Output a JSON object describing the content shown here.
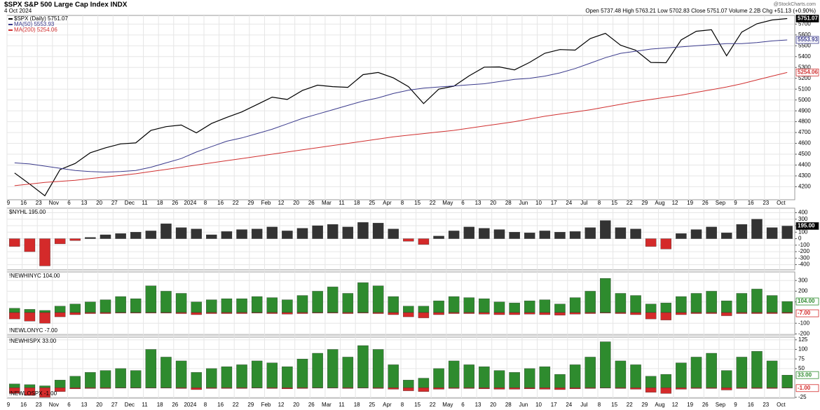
{
  "header": {
    "title": "$SPX S&P 500 Large Cap Index INDX",
    "date": "4 Oct 2024",
    "quote": "Open 5737.48 High 5763.21 Low 5702.83 Close 5751.07 Volume 2.2B Chg +51.13 (+0.90%)",
    "brand": "@StockCharts.com"
  },
  "chart_data": [
    {
      "type": "line",
      "grid": true,
      "categories": [
        "9",
        "16",
        "23",
        "Nov",
        "6",
        "13",
        "20",
        "27",
        "Dec",
        "11",
        "18",
        "26",
        "2024",
        "8",
        "16",
        "22",
        "29",
        "Feb",
        "12",
        "20",
        "26",
        "Mar",
        "11",
        "18",
        "25",
        "Apr",
        "8",
        "15",
        "22",
        "May",
        "6",
        "13",
        "20",
        "28",
        "Jun",
        "10",
        "17",
        "24",
        "Jul",
        "8",
        "15",
        "22",
        "29",
        "Aug",
        "12",
        "19",
        "26",
        "Sep",
        "9",
        "16",
        "23",
        "Oct"
      ],
      "ylim": [
        4080,
        5780
      ],
      "yticks": [
        4200,
        4300,
        4400,
        4500,
        4600,
        4700,
        4800,
        4900,
        5000,
        5100,
        5200,
        5300,
        5400,
        5500,
        5600,
        5700
      ],
      "series": [
        {
          "name": "$SPX (Daily) 5751.07",
          "color": "#000000",
          "last_label": "5751.07",
          "values": [
            4327,
            4224,
            4117,
            4358,
            4415,
            4514,
            4559,
            4595,
            4604,
            4719,
            4754,
            4769,
            4697,
            4783,
            4839,
            4890,
            4958,
            5026,
            5005,
            5088,
            5137,
            5123,
            5117,
            5234,
            5254,
            5204,
            5123,
            4967,
            5100,
            5128,
            5223,
            5303,
            5305,
            5278,
            5347,
            5431,
            5465,
            5460,
            5567,
            5615,
            5505,
            5459,
            5346,
            5344,
            5554,
            5634,
            5648,
            5408,
            5626,
            5703,
            5738,
            5751
          ]
        },
        {
          "name": "MA(50) 5553.93",
          "color": "#3a3a8c",
          "last_label": "5553.93",
          "values": [
            4420,
            4410,
            4390,
            4370,
            4350,
            4340,
            4335,
            4340,
            4350,
            4380,
            4420,
            4460,
            4520,
            4570,
            4620,
            4650,
            4690,
            4730,
            4780,
            4830,
            4870,
            4910,
            4950,
            4990,
            5020,
            5060,
            5090,
            5110,
            5120,
            5130,
            5140,
            5150,
            5170,
            5190,
            5200,
            5220,
            5250,
            5290,
            5340,
            5390,
            5430,
            5450,
            5470,
            5480,
            5490,
            5500,
            5510,
            5520,
            5520,
            5530,
            5545,
            5554
          ]
        },
        {
          "name": "MA(200) 5254.06",
          "color": "#d03030",
          "last_label": "5254.06",
          "values": [
            4210,
            4225,
            4240,
            4250,
            4260,
            4275,
            4290,
            4305,
            4320,
            4340,
            4360,
            4380,
            4400,
            4420,
            4440,
            4460,
            4480,
            4500,
            4520,
            4540,
            4560,
            4580,
            4600,
            4620,
            4640,
            4660,
            4675,
            4690,
            4705,
            4720,
            4740,
            4760,
            4780,
            4800,
            4825,
            4850,
            4870,
            4890,
            4910,
            4935,
            4960,
            4985,
            5005,
            5025,
            5045,
            5070,
            5095,
            5120,
            5150,
            5185,
            5220,
            5254
          ]
        }
      ]
    },
    {
      "type": "bar",
      "grid": true,
      "ylim": [
        -480,
        470
      ],
      "yticks": [
        400,
        300,
        200,
        100,
        0,
        -100,
        -200,
        -300,
        -400
      ],
      "series": [
        {
          "name": "$NYHL 195.00",
          "color": "#333333",
          "negative_color": "#d42a2a",
          "last_label": "195.00",
          "values": [
            -120,
            -200,
            -420,
            -80,
            -30,
            20,
            60,
            80,
            100,
            120,
            230,
            170,
            150,
            60,
            110,
            140,
            150,
            180,
            120,
            160,
            200,
            220,
            180,
            250,
            240,
            150,
            -40,
            -90,
            40,
            120,
            180,
            160,
            140,
            100,
            90,
            120,
            100,
            110,
            170,
            280,
            170,
            150,
            -120,
            -160,
            80,
            140,
            180,
            90,
            220,
            300,
            170,
            195
          ]
        }
      ]
    },
    {
      "type": "bar",
      "grid": true,
      "ylim": [
        -210,
        380
      ],
      "yticks": [
        300,
        200,
        100,
        -100,
        -200
      ],
      "series": [
        {
          "name": "!NEWHINYC 104.00",
          "color": "#2e8b2e",
          "last_label": "104.00",
          "values": [
            40,
            30,
            20,
            60,
            80,
            100,
            120,
            150,
            130,
            250,
            200,
            180,
            100,
            120,
            130,
            130,
            150,
            140,
            120,
            160,
            200,
            240,
            180,
            280,
            250,
            150,
            60,
            60,
            110,
            150,
            140,
            130,
            100,
            90,
            110,
            120,
            80,
            140,
            200,
            320,
            180,
            160,
            80,
            90,
            150,
            180,
            200,
            110,
            180,
            220,
            160,
            104
          ]
        },
        {
          "name": "!NEWLONYC -7.00",
          "color": "#d42a2a",
          "last_label": "-7.00",
          "values": [
            -60,
            -80,
            -100,
            -40,
            -20,
            -10,
            -10,
            -5,
            -5,
            -5,
            -5,
            -10,
            -20,
            -10,
            -10,
            -10,
            -5,
            -10,
            -15,
            -10,
            -5,
            -5,
            -10,
            -5,
            -10,
            -20,
            -40,
            -50,
            -20,
            -10,
            -10,
            -15,
            -20,
            -20,
            -15,
            -20,
            -25,
            -15,
            -10,
            -5,
            -10,
            -20,
            -60,
            -70,
            -20,
            -10,
            -10,
            -30,
            -10,
            -10,
            -10,
            -7
          ]
        }
      ]
    },
    {
      "type": "bar",
      "grid": true,
      "ylim": [
        -27,
        132
      ],
      "yticks": [
        125,
        100,
        75,
        50,
        -25
      ],
      "series": [
        {
          "name": "!NEWHISPX 33.00",
          "color": "#2e8b2e",
          "last_label": "33.00",
          "values": [
            10,
            8,
            5,
            20,
            30,
            40,
            45,
            50,
            45,
            100,
            80,
            70,
            40,
            50,
            55,
            60,
            70,
            65,
            55,
            75,
            90,
            100,
            80,
            110,
            100,
            60,
            20,
            25,
            50,
            70,
            60,
            55,
            45,
            40,
            50,
            55,
            35,
            60,
            80,
            120,
            70,
            60,
            30,
            35,
            65,
            80,
            90,
            45,
            80,
            95,
            70,
            33
          ]
        },
        {
          "name": "!NEWLOSPX -1.00",
          "color": "#d42a2a",
          "last_label": "-1.00",
          "values": [
            -15,
            -20,
            -25,
            -10,
            -3,
            -2,
            -2,
            -1,
            -1,
            -1,
            -1,
            -2,
            -5,
            -2,
            -2,
            -2,
            -1,
            -2,
            -3,
            -2,
            -1,
            -1,
            -2,
            -1,
            -2,
            -4,
            -8,
            -10,
            -4,
            -2,
            -2,
            -3,
            -4,
            -4,
            -3,
            -4,
            -5,
            -3,
            -2,
            -1,
            -2,
            -4,
            -12,
            -15,
            -4,
            -2,
            -2,
            -6,
            -2,
            -2,
            -2,
            -1
          ]
        }
      ]
    }
  ]
}
